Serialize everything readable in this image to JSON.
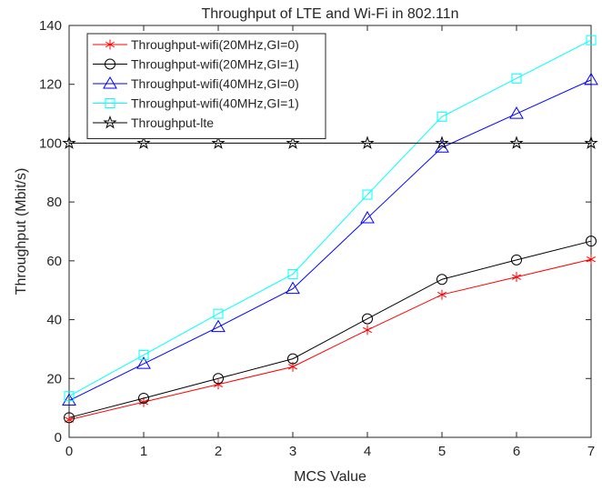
{
  "chart_data": {
    "type": "line",
    "title": "Throughput of LTE and Wi-Fi in 802.11n",
    "xlabel": "MCS Value",
    "ylabel": "Throughput (Mbit/s)",
    "xlim": [
      0,
      7
    ],
    "ylim": [
      0,
      140
    ],
    "x": [
      0,
      1,
      2,
      3,
      4,
      5,
      6,
      7
    ],
    "x_ticks": [
      "0",
      "1",
      "2",
      "3",
      "4",
      "5",
      "6",
      "7"
    ],
    "y_ticks": [
      "0",
      "20",
      "40",
      "60",
      "80",
      "100",
      "120",
      "140"
    ],
    "grid": false,
    "legend_position": "top-left",
    "series": [
      {
        "name": "Throughput-wifi(20MHz,GI=0)",
        "color": "#ff0000",
        "marker": "asterisk",
        "values": [
          6.0,
          12.0,
          18.0,
          24.0,
          36.5,
          48.5,
          54.5,
          60.5
        ]
      },
      {
        "name": "Throughput-wifi(20MHz,GI=1)",
        "color": "#000000",
        "marker": "circle",
        "values": [
          6.7,
          13.3,
          20.0,
          26.7,
          40.3,
          53.7,
          60.3,
          66.7
        ]
      },
      {
        "name": "Throughput-wifi(40MHz,GI=0)",
        "color": "#0000ff",
        "marker": "triangle",
        "values": [
          12.5,
          25.0,
          37.5,
          50.5,
          74.5,
          98.5,
          110.0,
          121.5
        ]
      },
      {
        "name": "Throughput-wifi(40MHz,GI=1)",
        "color": "#00ffff",
        "marker": "square",
        "values": [
          14.0,
          28.0,
          42.0,
          55.5,
          82.5,
          109.0,
          122.0,
          135.0
        ]
      },
      {
        "name": "Throughput-lte",
        "color": "#000000",
        "marker": "pentagram",
        "values": [
          100,
          100,
          100,
          100,
          100,
          100,
          100,
          100
        ]
      }
    ]
  }
}
